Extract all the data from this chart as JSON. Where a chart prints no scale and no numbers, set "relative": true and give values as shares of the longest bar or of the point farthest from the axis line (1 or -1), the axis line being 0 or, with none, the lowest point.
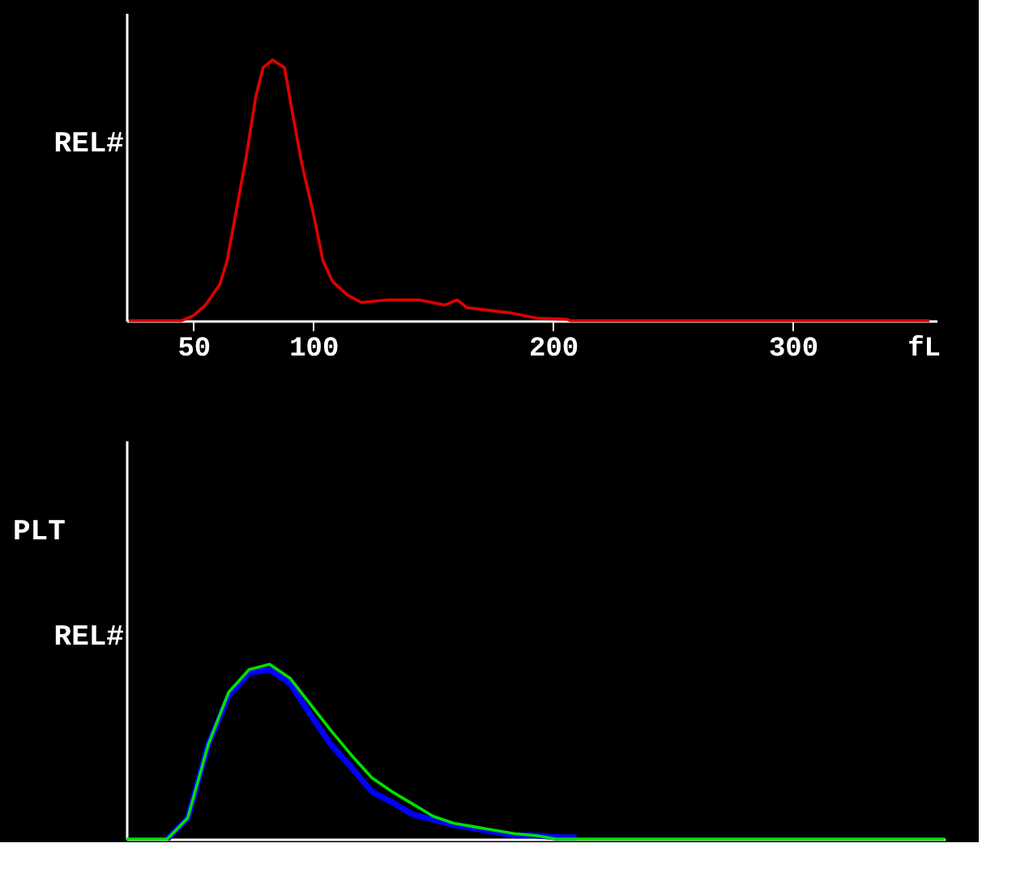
{
  "chart_data": [
    {
      "type": "line",
      "ylabel": "REL#",
      "xlabel": "fL",
      "relative": true,
      "tick_labels": "x",
      "grid": false,
      "line_style": "solid",
      "x": [
        23,
        45,
        50,
        55,
        61,
        64,
        68,
        72,
        76,
        79,
        83,
        88,
        91,
        95,
        100,
        104,
        108,
        114,
        120,
        131,
        144,
        155,
        160,
        164,
        182,
        193,
        206,
        207,
        357
      ],
      "xlim": [
        22,
        360
      ],
      "xticks": [
        50,
        100,
        200,
        300
      ],
      "series": [
        {
          "color": "#e00000",
          "values": [
            0,
            0,
            0.02,
            0.06,
            0.14,
            0.23,
            0.43,
            0.63,
            0.86,
            0.97,
            1.0,
            0.97,
            0.81,
            0.61,
            0.41,
            0.23,
            0.15,
            0.1,
            0.07,
            0.08,
            0.08,
            0.06,
            0.08,
            0.05,
            0.03,
            0.01,
            0.005,
            0,
            0
          ]
        }
      ]
    },
    {
      "type": "line",
      "title": "PLT",
      "ylabel": "REL#",
      "relative": true,
      "tick_labels": false,
      "grid": false,
      "line_style": "solid",
      "categories": [
        null,
        null,
        null,
        null,
        null,
        null,
        null,
        null,
        null,
        null,
        null,
        null,
        null,
        null,
        null,
        null,
        null,
        null,
        null,
        null,
        null,
        null,
        null,
        null,
        null,
        null,
        null,
        null,
        null,
        null,
        null,
        null,
        null,
        null,
        null,
        null,
        null,
        null,
        null,
        null,
        null
      ],
      "series": [
        {
          "color": "#0000ff",
          "values": [
            null,
            null,
            0,
            0.12,
            0.54,
            0.82,
            0.95,
            0.97,
            0.89,
            0.71,
            0.54,
            0.41,
            0.27,
            0.21,
            0.14,
            0.11,
            0.08,
            0.06,
            0.04,
            0.02,
            0.02,
            0.01,
            0.01,
            null,
            null,
            null,
            null,
            null,
            null,
            null,
            null,
            null,
            null,
            null,
            null,
            null,
            null,
            null,
            null,
            null,
            null
          ]
        },
        {
          "color": "#00e000",
          "values": [
            0,
            0,
            0,
            0.12,
            0.54,
            0.84,
            0.97,
            1.0,
            0.92,
            0.77,
            0.62,
            0.48,
            0.35,
            0.27,
            0.2,
            0.13,
            0.09,
            0.07,
            0.05,
            0.03,
            0.02,
            0,
            0,
            0,
            0,
            0,
            0,
            0,
            0,
            0,
            0,
            0,
            0,
            0,
            0,
            0,
            0,
            0,
            0,
            0,
            0
          ]
        }
      ]
    }
  ]
}
